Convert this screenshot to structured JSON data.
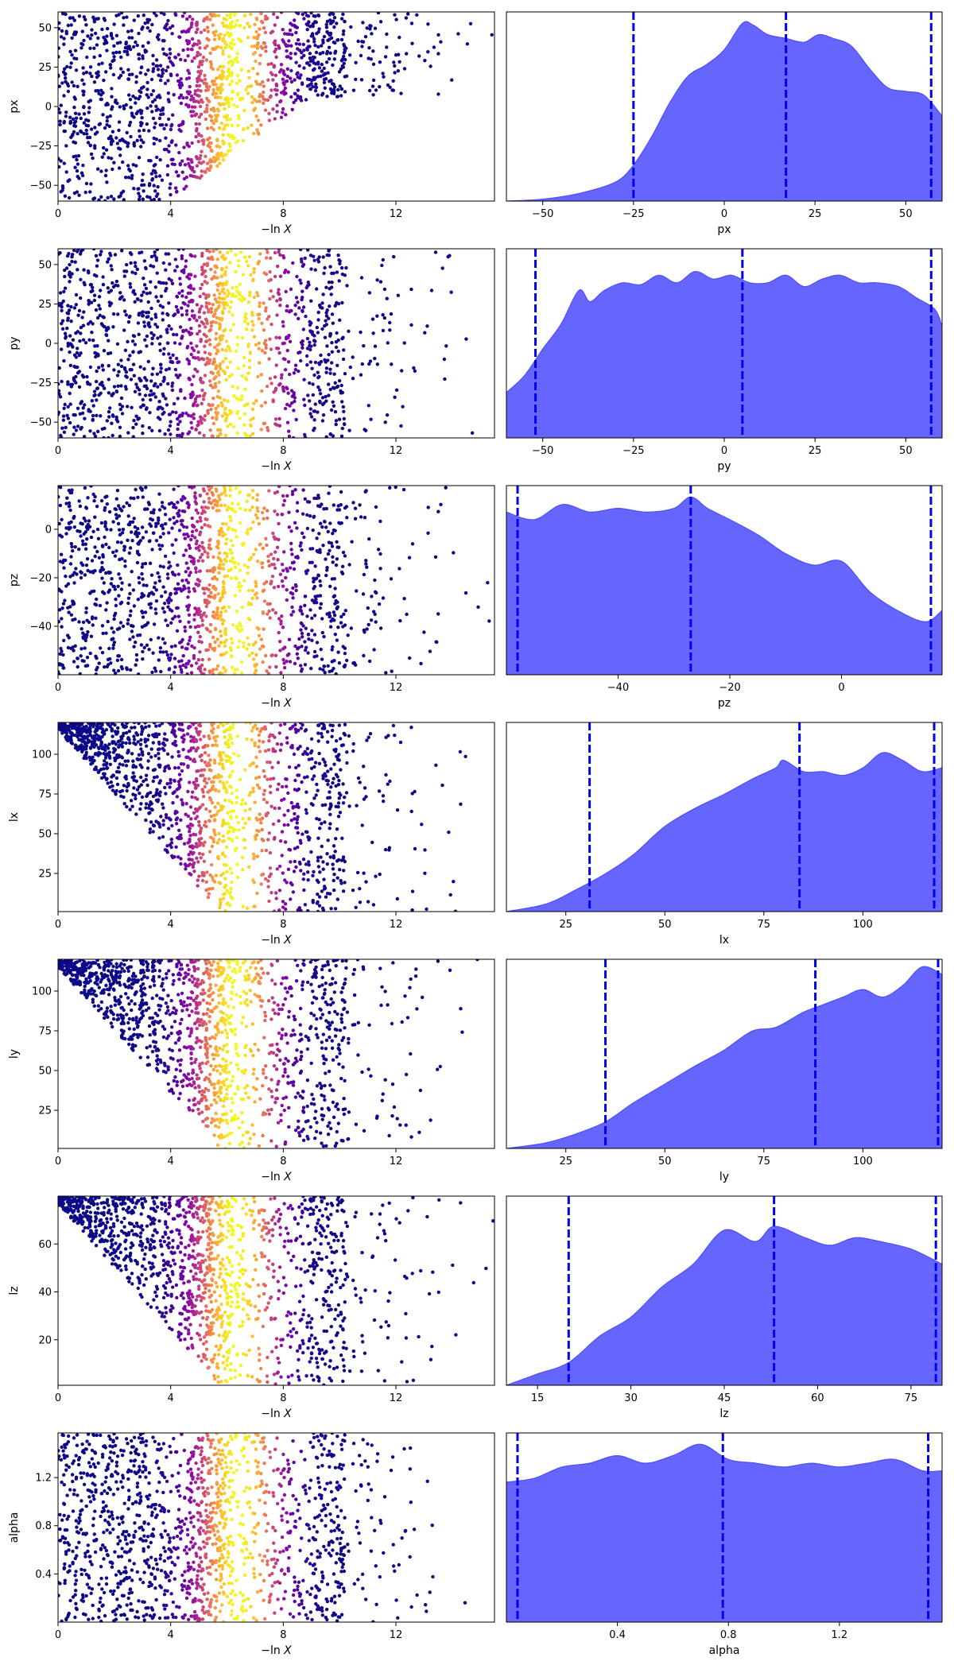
{
  "figure": {
    "colors": {
      "scatter_colormap": "plasma",
      "kde_fill": "#6666ff",
      "kde_edge": "#4d4dff",
      "quantile_line": "#0000ee"
    }
  },
  "chart_data": [
    {
      "type": "scatter",
      "title": "",
      "ylabel": "px",
      "xlabel_prefix": "−ln",
      "xlabel_var": "X",
      "xlim": [
        0,
        15.5
      ],
      "xticks": [
        0,
        4,
        8,
        12
      ],
      "xtick_labels": [
        "0",
        "4",
        "8",
        "12"
      ],
      "ylim": [
        -60,
        60
      ],
      "yticks": [
        -50,
        -25,
        0,
        25,
        50
      ],
      "ytick_labels": [
        "−50",
        "−25",
        "0",
        "25",
        "50"
      ],
      "color_peak_x": 6.3,
      "trend": "taper_top"
    },
    {
      "type": "area",
      "title": "",
      "xlabel": "px",
      "xlim": [
        -60,
        60
      ],
      "xticks": [
        -50,
        -25,
        0,
        25,
        50
      ],
      "xtick_labels": [
        "−50",
        "−25",
        "0",
        "25",
        "50"
      ],
      "quantiles": [
        -25,
        17,
        57
      ],
      "density": [
        [
          -60,
          0.0
        ],
        [
          -50,
          0.01
        ],
        [
          -40,
          0.04
        ],
        [
          -30,
          0.1
        ],
        [
          -25,
          0.19
        ],
        [
          -20,
          0.34
        ],
        [
          -15,
          0.52
        ],
        [
          -10,
          0.66
        ],
        [
          -5,
          0.72
        ],
        [
          0,
          0.8
        ],
        [
          5,
          0.94
        ],
        [
          8,
          0.93
        ],
        [
          12,
          0.88
        ],
        [
          17,
          0.86
        ],
        [
          22,
          0.84
        ],
        [
          26,
          0.88
        ],
        [
          30,
          0.86
        ],
        [
          35,
          0.82
        ],
        [
          40,
          0.7
        ],
        [
          45,
          0.6
        ],
        [
          50,
          0.58
        ],
        [
          55,
          0.56
        ],
        [
          60,
          0.45
        ]
      ]
    },
    {
      "type": "scatter",
      "title": "",
      "ylabel": "py",
      "xlabel_prefix": "−ln",
      "xlabel_var": "X",
      "xlim": [
        0,
        15.5
      ],
      "xticks": [
        0,
        4,
        8,
        12
      ],
      "xtick_labels": [
        "0",
        "4",
        "8",
        "12"
      ],
      "ylim": [
        -60,
        60
      ],
      "yticks": [
        -50,
        -25,
        0,
        25,
        50
      ],
      "ytick_labels": [
        "−50",
        "−25",
        "0",
        "25",
        "50"
      ],
      "color_peak_x": 6.4,
      "trend": "flat"
    },
    {
      "type": "area",
      "title": "",
      "xlabel": "py",
      "xlim": [
        -60,
        60
      ],
      "xticks": [
        -50,
        -25,
        0,
        25,
        50
      ],
      "xtick_labels": [
        "−50",
        "−25",
        "0",
        "25",
        "50"
      ],
      "quantiles": [
        -52,
        5,
        57
      ],
      "density": [
        [
          -60,
          0.24
        ],
        [
          -55,
          0.33
        ],
        [
          -50,
          0.47
        ],
        [
          -45,
          0.6
        ],
        [
          -40,
          0.78
        ],
        [
          -37,
          0.72
        ],
        [
          -33,
          0.78
        ],
        [
          -28,
          0.82
        ],
        [
          -23,
          0.81
        ],
        [
          -18,
          0.86
        ],
        [
          -13,
          0.82
        ],
        [
          -8,
          0.88
        ],
        [
          -3,
          0.84
        ],
        [
          2,
          0.86
        ],
        [
          7,
          0.82
        ],
        [
          12,
          0.82
        ],
        [
          17,
          0.86
        ],
        [
          22,
          0.8
        ],
        [
          27,
          0.84
        ],
        [
          32,
          0.86
        ],
        [
          37,
          0.82
        ],
        [
          42,
          0.82
        ],
        [
          48,
          0.8
        ],
        [
          53,
          0.74
        ],
        [
          58,
          0.68
        ],
        [
          60,
          0.59
        ]
      ]
    },
    {
      "type": "scatter",
      "title": "",
      "ylabel": "pz",
      "xlabel_prefix": "−ln",
      "xlabel_var": "X",
      "xlim": [
        0,
        15.5
      ],
      "xticks": [
        0,
        4,
        8,
        12
      ],
      "xtick_labels": [
        "0",
        "4",
        "8",
        "12"
      ],
      "ylim": [
        -60,
        18
      ],
      "yticks": [
        -40,
        -20,
        0
      ],
      "ytick_labels": [
        "−40",
        "−20",
        "0"
      ],
      "color_peak_x": 6.4,
      "trend": "flat"
    },
    {
      "type": "area",
      "title": "",
      "xlabel": "pz",
      "xlim": [
        -60,
        18
      ],
      "xticks": [
        -40,
        -20,
        0
      ],
      "xtick_labels": [
        "−40",
        "−20",
        "0"
      ],
      "quantiles": [
        -58,
        -27,
        16
      ],
      "density": [
        [
          -60,
          0.86
        ],
        [
          -55,
          0.82
        ],
        [
          -50,
          0.9
        ],
        [
          -45,
          0.86
        ],
        [
          -40,
          0.88
        ],
        [
          -35,
          0.86
        ],
        [
          -30,
          0.88
        ],
        [
          -27,
          0.94
        ],
        [
          -24,
          0.88
        ],
        [
          -20,
          0.82
        ],
        [
          -15,
          0.74
        ],
        [
          -10,
          0.64
        ],
        [
          -5,
          0.58
        ],
        [
          0,
          0.6
        ],
        [
          5,
          0.44
        ],
        [
          10,
          0.34
        ],
        [
          15,
          0.28
        ],
        [
          18,
          0.34
        ]
      ]
    },
    {
      "type": "scatter",
      "title": "",
      "ylabel": "lx",
      "xlabel_prefix": "−ln",
      "xlabel_var": "X",
      "xlim": [
        0,
        15.5
      ],
      "xticks": [
        0,
        4,
        8,
        12
      ],
      "xtick_labels": [
        "0",
        "4",
        "8",
        "12"
      ],
      "ylim": [
        1,
        120
      ],
      "yticks": [
        25,
        50,
        75,
        100
      ],
      "ytick_labels": [
        "25",
        "50",
        "75",
        "100"
      ],
      "color_peak_x": 6.3,
      "trend": "increasing"
    },
    {
      "type": "area",
      "title": "",
      "xlabel": "lx",
      "xlim": [
        10,
        120
      ],
      "xticks": [
        25,
        50,
        75,
        100
      ],
      "xtick_labels": [
        "25",
        "50",
        "75",
        "100"
      ],
      "quantiles": [
        31,
        84,
        118
      ],
      "density": [
        [
          10,
          0.0
        ],
        [
          20,
          0.04
        ],
        [
          28,
          0.12
        ],
        [
          35,
          0.2
        ],
        [
          42,
          0.3
        ],
        [
          50,
          0.45
        ],
        [
          58,
          0.55
        ],
        [
          65,
          0.62
        ],
        [
          72,
          0.7
        ],
        [
          78,
          0.76
        ],
        [
          80,
          0.8
        ],
        [
          85,
          0.74
        ],
        [
          90,
          0.74
        ],
        [
          95,
          0.72
        ],
        [
          100,
          0.76
        ],
        [
          105,
          0.84
        ],
        [
          110,
          0.8
        ],
        [
          115,
          0.74
        ],
        [
          120,
          0.76
        ]
      ]
    },
    {
      "type": "scatter",
      "title": "",
      "ylabel": "ly",
      "xlabel_prefix": "−ln",
      "xlabel_var": "X",
      "xlim": [
        0,
        15.5
      ],
      "xticks": [
        0,
        4,
        8,
        12
      ],
      "xtick_labels": [
        "0",
        "4",
        "8",
        "12"
      ],
      "ylim": [
        1,
        120
      ],
      "yticks": [
        25,
        50,
        75,
        100
      ],
      "ytick_labels": [
        "25",
        "50",
        "75",
        "100"
      ],
      "color_peak_x": 6.3,
      "trend": "increasing"
    },
    {
      "type": "area",
      "title": "",
      "xlabel": "ly",
      "xlim": [
        10,
        120
      ],
      "xticks": [
        25,
        50,
        75,
        100
      ],
      "xtick_labels": [
        "25",
        "50",
        "75",
        "100"
      ],
      "quantiles": [
        35,
        88,
        119
      ],
      "density": [
        [
          10,
          0.0
        ],
        [
          20,
          0.03
        ],
        [
          28,
          0.08
        ],
        [
          35,
          0.14
        ],
        [
          42,
          0.24
        ],
        [
          50,
          0.34
        ],
        [
          58,
          0.44
        ],
        [
          65,
          0.52
        ],
        [
          72,
          0.62
        ],
        [
          78,
          0.64
        ],
        [
          85,
          0.72
        ],
        [
          90,
          0.76
        ],
        [
          95,
          0.8
        ],
        [
          100,
          0.84
        ],
        [
          105,
          0.8
        ],
        [
          110,
          0.86
        ],
        [
          115,
          0.96
        ],
        [
          120,
          0.92
        ]
      ]
    },
    {
      "type": "scatter",
      "title": "",
      "ylabel": "lz",
      "xlabel_prefix": "−ln",
      "xlabel_var": "X",
      "xlim": [
        0,
        15.5
      ],
      "xticks": [
        0,
        4,
        8,
        12
      ],
      "xtick_labels": [
        "0",
        "4",
        "8",
        "12"
      ],
      "ylim": [
        1,
        80
      ],
      "yticks": [
        20,
        40,
        60
      ],
      "ytick_labels": [
        "20",
        "40",
        "60"
      ],
      "color_peak_x": 6.3,
      "trend": "increasing"
    },
    {
      "type": "area",
      "title": "",
      "xlabel": "lz",
      "xlim": [
        10,
        80
      ],
      "xticks": [
        15,
        30,
        45,
        60,
        75
      ],
      "xtick_labels": [
        "15",
        "30",
        "45",
        "60",
        "75"
      ],
      "quantiles": [
        20,
        53,
        79
      ],
      "density": [
        [
          10,
          0.0
        ],
        [
          15,
          0.06
        ],
        [
          20,
          0.12
        ],
        [
          25,
          0.26
        ],
        [
          30,
          0.36
        ],
        [
          35,
          0.52
        ],
        [
          40,
          0.64
        ],
        [
          45,
          0.82
        ],
        [
          50,
          0.76
        ],
        [
          53,
          0.84
        ],
        [
          58,
          0.78
        ],
        [
          62,
          0.74
        ],
        [
          66,
          0.78
        ],
        [
          70,
          0.76
        ],
        [
          75,
          0.72
        ],
        [
          80,
          0.64
        ]
      ]
    },
    {
      "type": "scatter",
      "title": "",
      "ylabel": "alpha",
      "xlabel_prefix": "−ln",
      "xlabel_var": "X",
      "xlim": [
        0,
        15.5
      ],
      "xticks": [
        0,
        4,
        8,
        12
      ],
      "xtick_labels": [
        "0",
        "4",
        "8",
        "12"
      ],
      "ylim": [
        0.0,
        1.57
      ],
      "yticks": [
        0.4,
        0.8,
        1.2
      ],
      "ytick_labels": [
        "0.4",
        "0.8",
        "1.2"
      ],
      "color_peak_x": 6.4,
      "trend": "flat"
    },
    {
      "type": "area",
      "title": "",
      "xlabel": "alpha",
      "xlim": [
        0.0,
        1.57
      ],
      "xticks": [
        0.4,
        0.8,
        1.2
      ],
      "xtick_labels": [
        "0.4",
        "0.8",
        "1.2"
      ],
      "quantiles": [
        0.04,
        0.78,
        1.52
      ],
      "density": [
        [
          0.0,
          0.74
        ],
        [
          0.1,
          0.76
        ],
        [
          0.2,
          0.82
        ],
        [
          0.3,
          0.84
        ],
        [
          0.4,
          0.88
        ],
        [
          0.5,
          0.84
        ],
        [
          0.6,
          0.88
        ],
        [
          0.7,
          0.94
        ],
        [
          0.8,
          0.86
        ],
        [
          0.9,
          0.84
        ],
        [
          1.0,
          0.82
        ],
        [
          1.1,
          0.84
        ],
        [
          1.2,
          0.82
        ],
        [
          1.3,
          0.84
        ],
        [
          1.4,
          0.86
        ],
        [
          1.5,
          0.8
        ],
        [
          1.57,
          0.8
        ]
      ]
    }
  ]
}
